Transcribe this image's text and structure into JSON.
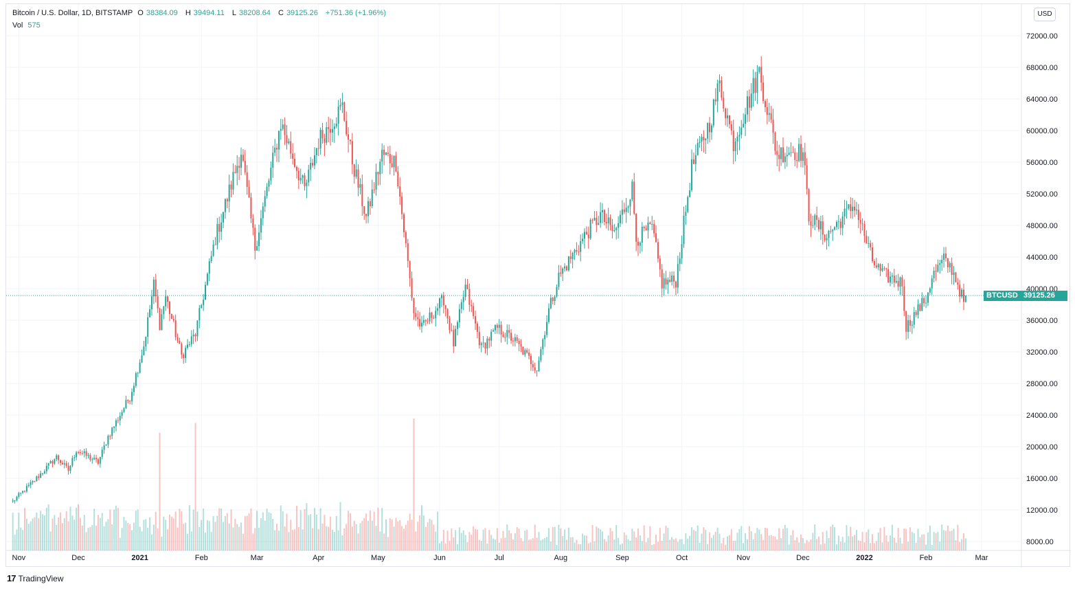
{
  "header": {
    "symbol_title": "Bitcoin / U.S. Dollar, 1D, BITSTAMP",
    "open_label": "O",
    "open_value": "38384.09",
    "high_label": "H",
    "high_value": "39494.11",
    "low_label": "L",
    "low_value": "38208.64",
    "close_label": "C",
    "close_value": "39125.26",
    "change_value": "+751.36 (+1.96%)",
    "vol_label": "Vol",
    "vol_value": "575"
  },
  "currency_button": "USD",
  "price_tags": {
    "symbol": "BTCUSD",
    "last_price": "39125.26"
  },
  "footer": {
    "brand": "TradingView",
    "logo_icon": "tradingview-logo-icon"
  },
  "colors": {
    "up": "#26a69a",
    "down": "#ef5350",
    "grid": "#f0f3fa",
    "axis_text": "#131722"
  },
  "chart_data": {
    "type": "candlestick",
    "title": "Bitcoin / U.S. Dollar, 1D, BITSTAMP",
    "interval": "1D",
    "y_axis": {
      "position": "right",
      "ticks": [
        "8000.00",
        "12000.00",
        "16000.00",
        "20000.00",
        "24000.00",
        "28000.00",
        "32000.00",
        "36000.00",
        "40000.00",
        "44000.00",
        "48000.00",
        "52000.00",
        "56000.00",
        "60000.00",
        "64000.00",
        "68000.00",
        "72000.00"
      ],
      "ylim": [
        6500,
        74500
      ]
    },
    "x_axis": {
      "ticks": [
        "Nov",
        "Dec",
        "2021",
        "Feb",
        "Mar",
        "Apr",
        "May",
        "Jun",
        "Jul",
        "Aug",
        "Sep",
        "Oct",
        "Nov",
        "Dec",
        "2022",
        "Feb",
        "Mar"
      ],
      "bold_ticks": [
        "2021",
        "2022"
      ]
    },
    "grid": true,
    "last_price_line": 39125.26,
    "price_anchors": [
      [
        "2020-10-29",
        13100
      ],
      [
        "2020-11-08",
        15500
      ],
      [
        "2020-11-20",
        18700
      ],
      [
        "2020-11-26",
        17000
      ],
      [
        "2020-11-30",
        19600
      ],
      [
        "2020-12-11",
        18000
      ],
      [
        "2020-12-16",
        21300
      ],
      [
        "2020-12-27",
        26300
      ],
      [
        "2021-01-03",
        32800
      ],
      [
        "2021-01-08",
        40500
      ],
      [
        "2021-01-11",
        35500
      ],
      [
        "2021-01-14",
        39000
      ],
      [
        "2021-01-22",
        31500
      ],
      [
        "2021-01-29",
        34300
      ],
      [
        "2021-02-08",
        46400
      ],
      [
        "2021-02-21",
        57400
      ],
      [
        "2021-02-28",
        45200
      ],
      [
        "2021-03-13",
        61000
      ],
      [
        "2021-03-25",
        52500
      ],
      [
        "2021-04-01",
        58700
      ],
      [
        "2021-04-13",
        63000
      ],
      [
        "2021-04-18",
        56200
      ],
      [
        "2021-04-25",
        49000
      ],
      [
        "2021-05-03",
        57000
      ],
      [
        "2021-05-10",
        56000
      ],
      [
        "2021-05-13",
        49500
      ],
      [
        "2021-05-19",
        37000
      ],
      [
        "2021-05-23",
        35000
      ],
      [
        "2021-06-03",
        38700
      ],
      [
        "2021-06-08",
        33000
      ],
      [
        "2021-06-14",
        40200
      ],
      [
        "2021-06-22",
        32500
      ],
      [
        "2021-06-30",
        35000
      ],
      [
        "2021-07-08",
        33600
      ],
      [
        "2021-07-20",
        29900
      ],
      [
        "2021-07-26",
        37300
      ],
      [
        "2021-07-31",
        41500
      ],
      [
        "2021-08-14",
        47000
      ],
      [
        "2021-08-21",
        49300
      ],
      [
        "2021-08-28",
        47000
      ],
      [
        "2021-09-06",
        52700
      ],
      [
        "2021-09-08",
        46300
      ],
      [
        "2021-09-16",
        47700
      ],
      [
        "2021-09-21",
        40700
      ],
      [
        "2021-09-28",
        41000
      ],
      [
        "2021-10-06",
        55300
      ],
      [
        "2021-10-15",
        61000
      ],
      [
        "2021-10-20",
        65900
      ],
      [
        "2021-10-27",
        58500
      ],
      [
        "2021-11-09",
        67500
      ],
      [
        "2021-11-18",
        57000
      ],
      [
        "2021-11-24",
        57500
      ],
      [
        "2021-12-01",
        57200
      ],
      [
        "2021-12-04",
        49200
      ],
      [
        "2021-12-13",
        46700
      ],
      [
        "2021-12-27",
        50700
      ],
      [
        "2022-01-05",
        43500
      ],
      [
        "2022-01-10",
        41800
      ],
      [
        "2022-01-20",
        40700
      ],
      [
        "2022-01-22",
        35100
      ],
      [
        "2022-01-27",
        37000
      ],
      [
        "2022-02-01",
        38700
      ],
      [
        "2022-02-04",
        41500
      ],
      [
        "2022-02-10",
        43600
      ],
      [
        "2022-02-14",
        42500
      ],
      [
        "2022-02-17",
        40600
      ],
      [
        "2022-02-20",
        38300
      ],
      [
        "2022-02-21",
        39125
      ]
    ],
    "volume_panel": {
      "last_value": 575,
      "peak_dates": [
        "2021-01-11",
        "2021-01-29",
        "2021-05-19"
      ]
    }
  }
}
